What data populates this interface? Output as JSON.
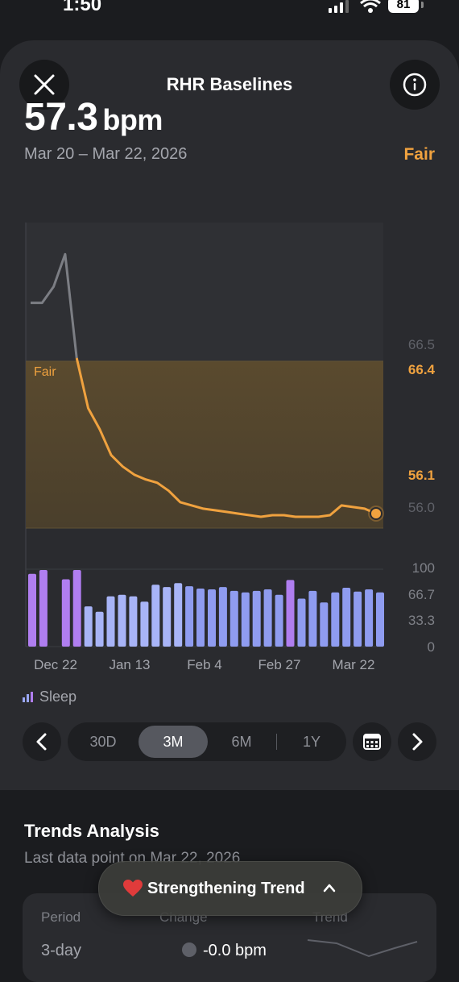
{
  "status_bar": {
    "time": "1:50",
    "battery": "81"
  },
  "header": {
    "title": "RHR Baselines"
  },
  "summary": {
    "value": "57.3",
    "unit": "bpm",
    "date_range": "Mar 20 – Mar 22, 2026",
    "status": "Fair"
  },
  "legend": {
    "label": "Sleep"
  },
  "range_selector": {
    "options": [
      "30D",
      "3M",
      "6M",
      "1Y"
    ],
    "selected": "3M"
  },
  "trends": {
    "title": "Trends Analysis",
    "subtitle": "Last data point on Mar 22, 2026",
    "columns": [
      "Period",
      "Change",
      "Trend"
    ],
    "rows": [
      {
        "period": "3-day",
        "change": "-0.0 bpm"
      }
    ]
  },
  "toast": {
    "label": "Strengthening Trend"
  },
  "colors": {
    "accent": "#f0a23f",
    "sleep_bar": "#9aa7f5",
    "sleep_bar_high": "#b07ef0",
    "card": "#2a2b2f"
  },
  "chart_data": {
    "type": "line",
    "x_ticks": [
      "Dec 22",
      "Jan 13",
      "Feb 4",
      "Feb 27",
      "Mar 22"
    ],
    "rhr_axis_labels": [
      "66.5",
      "56.0"
    ],
    "band": {
      "label": "Fair",
      "upper": "66.4",
      "lower": "56.1"
    },
    "rhr_series": [
      70,
      70,
      71,
      73,
      66.6,
      63.5,
      62.2,
      60.6,
      59.9,
      59.4,
      59.1,
      58.9,
      58.4,
      57.7,
      57.5,
      57.3,
      57.2,
      57.1,
      57.0,
      56.9,
      56.8,
      56.9,
      56.9,
      56.8,
      56.8,
      56.8,
      56.9,
      57.5,
      57.4,
      57.3,
      57.0
    ],
    "sleep_axis_labels": [
      "100",
      "66.7",
      "33.3",
      "0"
    ],
    "sleep_values": [
      94,
      99,
      null,
      87,
      99,
      52,
      45,
      65,
      67,
      65,
      58,
      80,
      77,
      82,
      78,
      75,
      74,
      77,
      72,
      70,
      72,
      74,
      67,
      86,
      62,
      72,
      57,
      70,
      76,
      71,
      74,
      70
    ],
    "sleep_highlight": [
      true,
      true,
      false,
      true,
      true,
      false,
      false,
      false,
      false,
      false,
      false,
      false,
      false,
      false,
      false,
      false,
      false,
      false,
      false,
      false,
      false,
      false,
      false,
      true,
      false,
      false,
      false,
      false,
      false,
      false,
      false,
      false
    ]
  }
}
